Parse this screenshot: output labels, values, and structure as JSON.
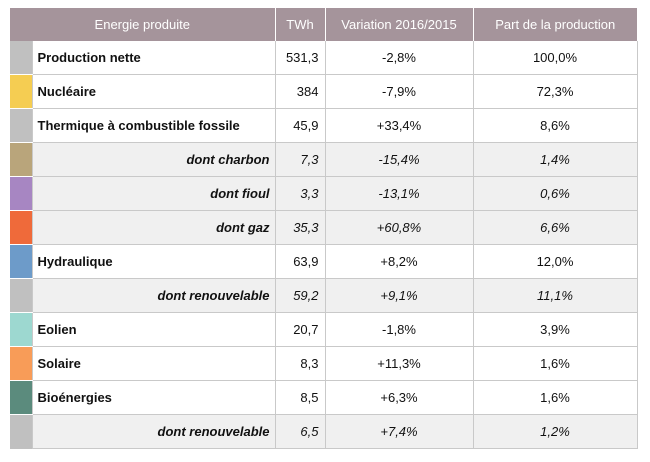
{
  "table": {
    "headers": [
      "Energie produite",
      "TWh",
      "Variation 2016/2015",
      "Part de la production"
    ],
    "rows": [
      {
        "label": "Production nette",
        "twh": "531,3",
        "variation": "-2,8%",
        "part": "100,0%",
        "color": "#c0c0c0",
        "sub": false
      },
      {
        "label": "Nucléaire",
        "twh": "384",
        "variation": "-7,9%",
        "part": "72,3%",
        "color": "#f5cd52",
        "sub": false
      },
      {
        "label": "Thermique à combustible fossile",
        "twh": "45,9",
        "variation": "+33,4%",
        "part": "8,6%",
        "color": "#c0c0c0",
        "sub": false
      },
      {
        "label": "dont charbon",
        "twh": "7,3",
        "variation": "-15,4%",
        "part": "1,4%",
        "color": "#b9a57b",
        "sub": true
      },
      {
        "label": "dont fioul",
        "twh": "3,3",
        "variation": "-13,1%",
        "part": "0,6%",
        "color": "#a786c2",
        "sub": true
      },
      {
        "label": "dont gaz",
        "twh": "35,3",
        "variation": "+60,8%",
        "part": "6,6%",
        "color": "#ef6a3a",
        "sub": true
      },
      {
        "label": "Hydraulique",
        "twh": "63,9",
        "variation": "+8,2%",
        "part": "12,0%",
        "color": "#6d9bc9",
        "sub": false
      },
      {
        "label": "dont renouvelable",
        "twh": "59,2",
        "variation": "+9,1%",
        "part": "11,1%",
        "color": "#c0c0c0",
        "sub": true
      },
      {
        "label": "Eolien",
        "twh": "20,7",
        "variation": "-1,8%",
        "part": "3,9%",
        "color": "#9dd8d0",
        "sub": false
      },
      {
        "label": "Solaire",
        "twh": "8,3",
        "variation": "+11,3%",
        "part": "1,6%",
        "color": "#f89c58",
        "sub": false
      },
      {
        "label": "Bioénergies",
        "twh": "8,5",
        "variation": "+6,3%",
        "part": "1,6%",
        "color": "#5b8b7d",
        "sub": false
      },
      {
        "label": "dont renouvelable",
        "twh": "6,5",
        "variation": "+7,4%",
        "part": "1,2%",
        "color": "#c0c0c0",
        "sub": true
      }
    ]
  }
}
